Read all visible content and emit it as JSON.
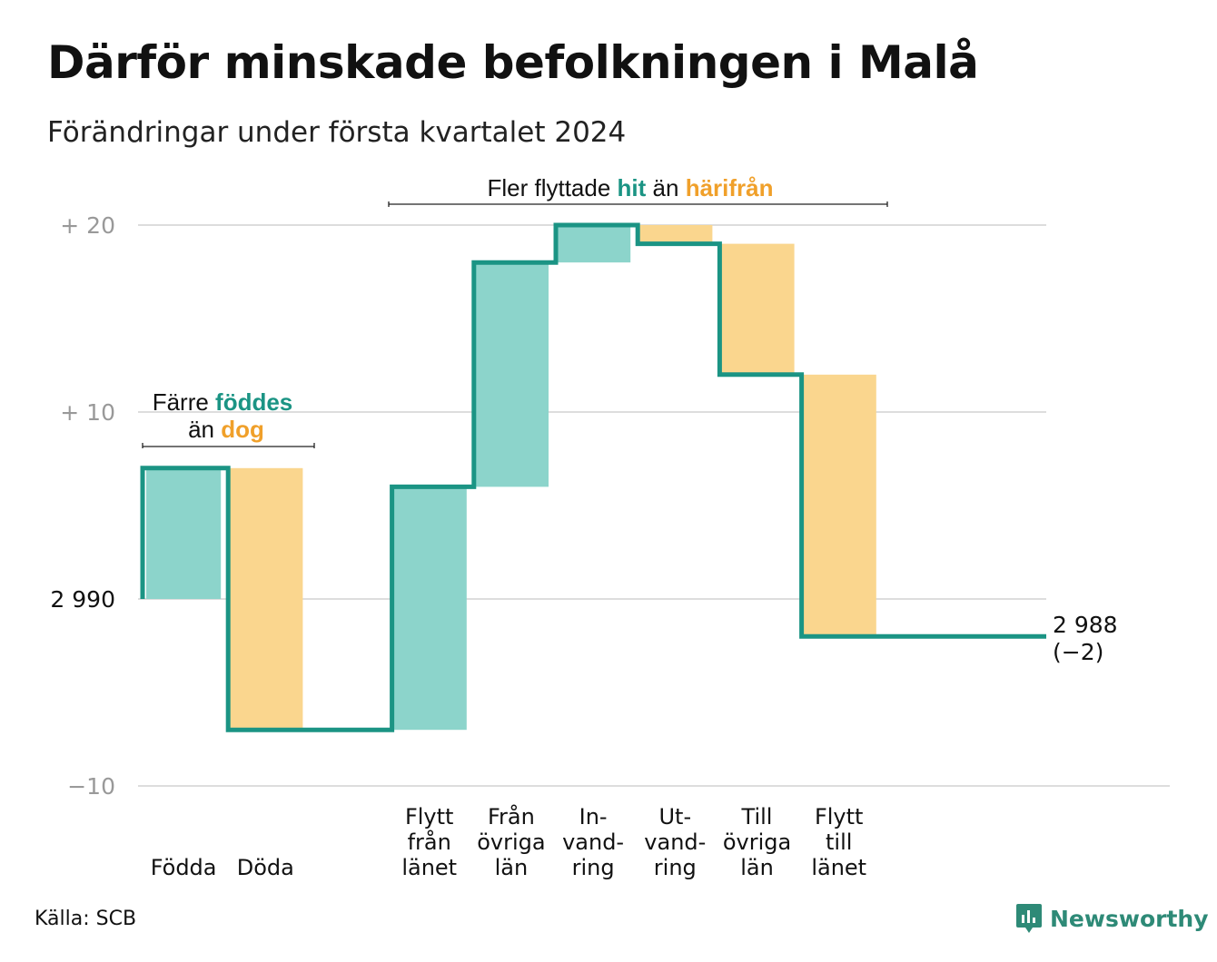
{
  "title": "Därför minskade befolkningen i Malå",
  "subtitle": "Förändringar under första kvartalet 2024",
  "source": "Källa: SCB",
  "brand": "Newsworthy",
  "colors": {
    "teal_line": "#1b9484",
    "teal_fill": "#8cd4cb",
    "orange_fill": "#fad68e",
    "orange_text": "#f0a02a",
    "grid": "#dddddd",
    "axis_label": "#999999"
  },
  "annotations": {
    "birth": {
      "line1_prefix": "Färre ",
      "line1_hl": "föddes",
      "line2_prefix": "än ",
      "line2_hl": "dog"
    },
    "migration": {
      "prefix": "Fler flyttade ",
      "hl1": "hit",
      "mid": " än ",
      "hl2": "härifrån"
    }
  },
  "end_label": {
    "value": "2 988",
    "change": "(−2)"
  },
  "chart_data": {
    "type": "waterfall",
    "title": "Därför minskade befolkningen i Malå",
    "subtitle": "Förändringar under första kvartalet 2024",
    "start_value": 2990,
    "end_value": 2988,
    "ylim": [
      -10,
      20
    ],
    "yticks": [
      {
        "value": 20,
        "label": "+  20"
      },
      {
        "value": 10,
        "label": "+  10"
      },
      {
        "value": 0,
        "label": "2  990"
      },
      {
        "value": -10,
        "label": "−10"
      }
    ],
    "grid": true,
    "steps": [
      {
        "label": [
          "",
          "",
          "Födda"
        ],
        "change": 7,
        "sign": "positive"
      },
      {
        "label": [
          "",
          "",
          "Döda"
        ],
        "change": -14,
        "sign": "negative"
      },
      {
        "label": [
          "",
          "",
          ""
        ],
        "change": 0,
        "sign": "none"
      },
      {
        "label": [
          "Flytt",
          "från",
          "länet"
        ],
        "change": 13,
        "sign": "positive"
      },
      {
        "label": [
          "Från",
          "övriga",
          "län"
        ],
        "change": 12,
        "sign": "positive"
      },
      {
        "label": [
          "In-",
          "vand-",
          "ring"
        ],
        "change": 2,
        "sign": "positive"
      },
      {
        "label": [
          "Ut-",
          "vand-",
          "ring"
        ],
        "change": -1,
        "sign": "negative"
      },
      {
        "label": [
          "Till",
          "övriga",
          "län"
        ],
        "change": -7,
        "sign": "negative"
      },
      {
        "label": [
          "Flytt",
          "till",
          "länet"
        ],
        "change": -14,
        "sign": "negative"
      }
    ]
  }
}
